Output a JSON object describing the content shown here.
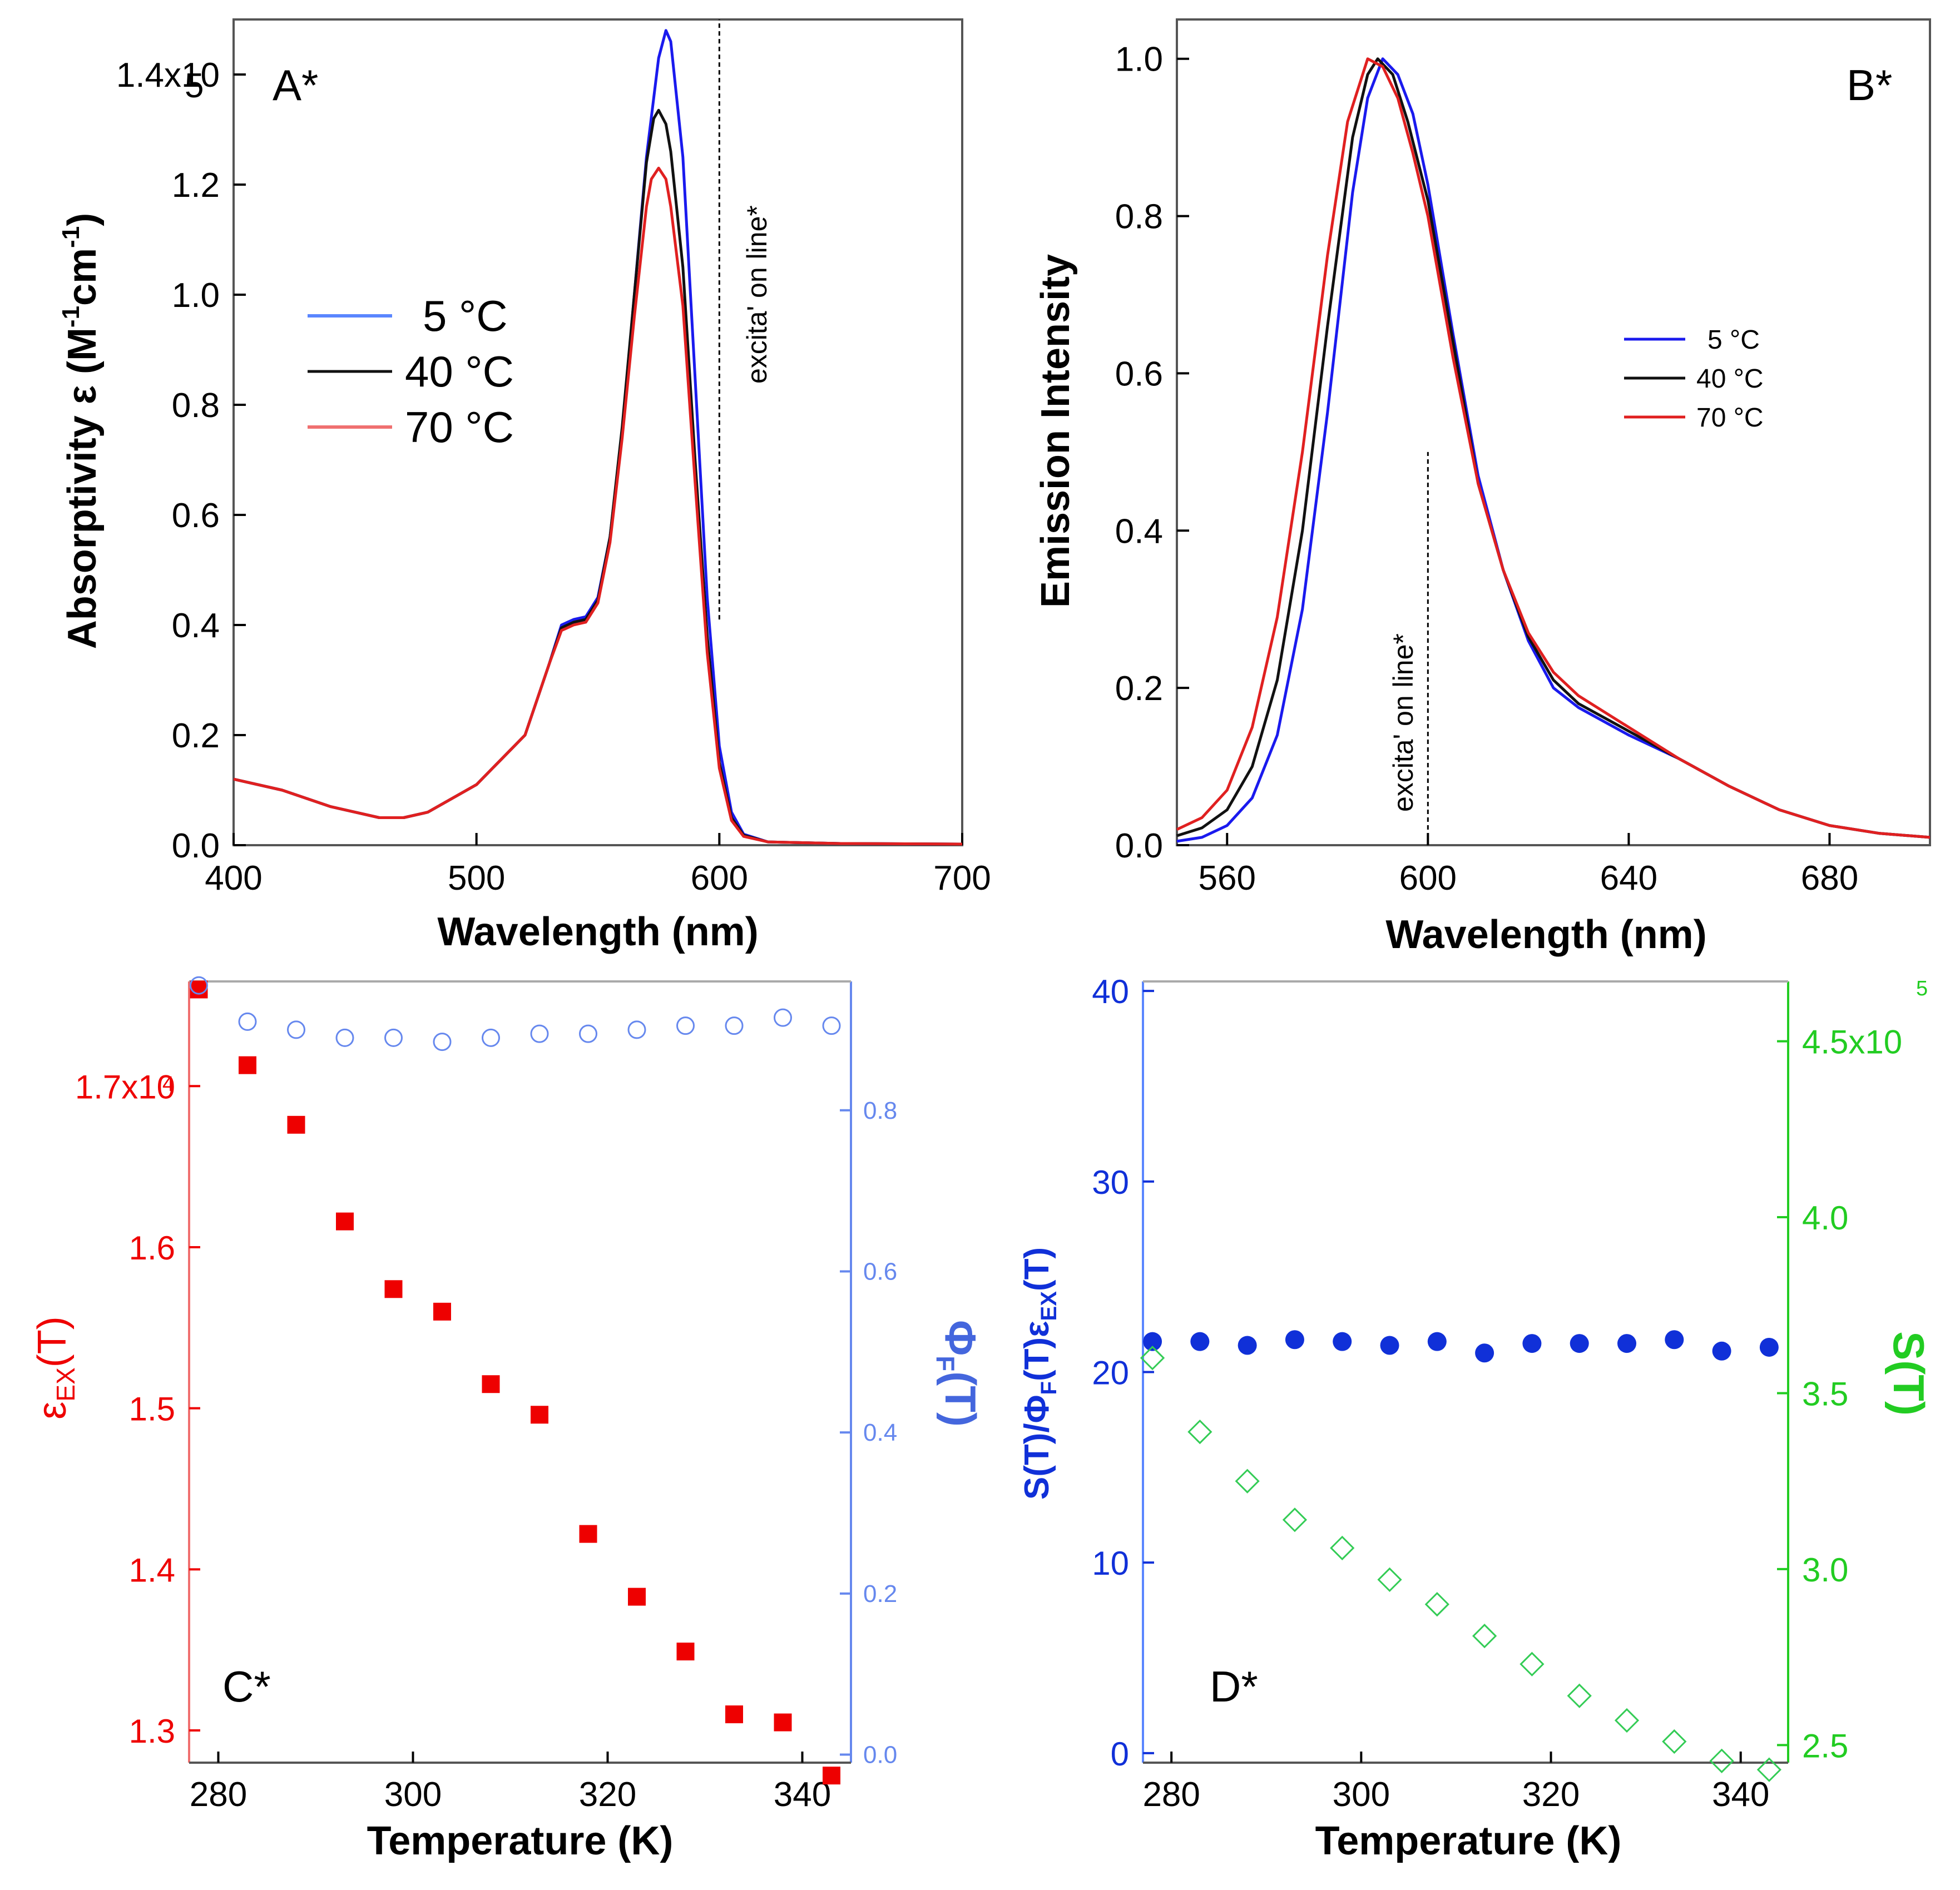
{
  "colors": {
    "blue": "#1a1aee",
    "black": "#111111",
    "red": "#e02020",
    "lightred": "#f07070",
    "lightblue": "#5a86ff",
    "marker_red": "#ee0000",
    "marker_blue": "#6688ee",
    "dot_blue": "#1030d8",
    "green": "#22cc22",
    "diamond_green": "#33cc55"
  },
  "chart_data": [
    {
      "panel": "A",
      "type": "line",
      "label": "A*",
      "xlabel": "Wavelength (nm)",
      "ylabel": "Absorptivity ε (M",
      "ylabel_sup1": "-1",
      "ylabel_mid": "cm",
      "ylabel_sup2": "-1",
      "ylabel_end": ")",
      "xlim": [
        400,
        700
      ],
      "ylim": [
        0,
        150000
      ],
      "xticks": [
        400,
        500,
        600,
        700
      ],
      "xtick_labels": [
        "400",
        "500",
        "600",
        "700"
      ],
      "yticks": [
        0,
        20000,
        40000,
        60000,
        80000,
        100000,
        120000,
        140000
      ],
      "ytick_labels": [
        "0.0",
        "0.2",
        "0.4",
        "0.6",
        "0.8",
        "1.0",
        "1.2",
        "1.4x10"
      ],
      "ytick_top_exp": "5",
      "vline": {
        "x": 600,
        "y_from": 41000,
        "y_to": 150000,
        "label": "excita' on line*"
      },
      "legend": [
        {
          "label": "5 °C",
          "color": "lightblue"
        },
        {
          "label": "40 °C",
          "color": "black"
        },
        {
          "label": "70 °C",
          "color": "lightred"
        }
      ],
      "series": [
        {
          "name": "5 °C",
          "color": "blue",
          "x": [
            400,
            420,
            440,
            460,
            470,
            480,
            500,
            520,
            530,
            535,
            540,
            545,
            550,
            555,
            560,
            565,
            570,
            575,
            578,
            580,
            585,
            590,
            595,
            600,
            605,
            610,
            620,
            650,
            700
          ],
          "y": [
            12000,
            10000,
            7000,
            5000,
            5000,
            6000,
            11000,
            20000,
            33000,
            40000,
            41000,
            41500,
            45000,
            56000,
            75000,
            100000,
            125000,
            143000,
            148000,
            146000,
            125000,
            85000,
            45000,
            18000,
            6000,
            2000,
            600,
            300,
            200
          ]
        },
        {
          "name": "40 °C",
          "color": "black",
          "x": [
            400,
            420,
            440,
            460,
            470,
            480,
            500,
            520,
            530,
            535,
            540,
            545,
            550,
            555,
            560,
            565,
            570,
            573,
            575,
            578,
            580,
            585,
            590,
            595,
            600,
            605,
            610,
            620,
            650,
            700
          ],
          "y": [
            12000,
            10000,
            7000,
            5000,
            5000,
            6000,
            11000,
            20000,
            33000,
            39500,
            40500,
            41000,
            44500,
            56000,
            76000,
            100000,
            124000,
            132000,
            133500,
            131000,
            126000,
            105000,
            70000,
            38000,
            15000,
            5000,
            1800,
            600,
            300,
            200
          ]
        },
        {
          "name": "70 °C",
          "color": "red",
          "x": [
            400,
            420,
            440,
            460,
            470,
            480,
            500,
            520,
            530,
            535,
            540,
            545,
            550,
            555,
            560,
            565,
            570,
            572,
            575,
            578,
            580,
            585,
            590,
            595,
            600,
            605,
            610,
            620,
            650,
            700
          ],
          "y": [
            12000,
            10000,
            7000,
            5000,
            5000,
            6000,
            11000,
            20000,
            33000,
            39000,
            40000,
            40500,
            44000,
            55000,
            74000,
            96000,
            116000,
            121000,
            123000,
            121000,
            116000,
            98000,
            66000,
            35000,
            14000,
            4500,
            1600,
            600,
            300,
            200
          ]
        }
      ]
    },
    {
      "panel": "B",
      "type": "line",
      "label": "B*",
      "xlabel": "Wavelength (nm)",
      "ylabel": "Emission Intensity",
      "xlim": [
        550,
        700
      ],
      "ylim": [
        0,
        1.05
      ],
      "xticks": [
        560,
        600,
        640,
        680
      ],
      "xtick_labels": [
        "560",
        "600",
        "640",
        "680"
      ],
      "yticks": [
        0,
        0.2,
        0.4,
        0.6,
        0.8,
        1.0
      ],
      "ytick_labels": [
        "0.0",
        "0.2",
        "0.4",
        "0.6",
        "0.8",
        "1.0"
      ],
      "vline": {
        "x": 600,
        "y_from": 0,
        "y_to": 0.5,
        "label": "excita' on line*"
      },
      "legend": [
        {
          "label": "5 °C",
          "color": "blue"
        },
        {
          "label": "40 °C",
          "color": "black"
        },
        {
          "label": "70 °C",
          "color": "red"
        }
      ],
      "series": [
        {
          "name": "5 °C",
          "color": "blue",
          "x": [
            550,
            555,
            560,
            565,
            570,
            575,
            580,
            585,
            588,
            591,
            594,
            597,
            600,
            605,
            610,
            615,
            620,
            625,
            630,
            640,
            650,
            660,
            670,
            680,
            690,
            700
          ],
          "y": [
            0.005,
            0.01,
            0.025,
            0.06,
            0.14,
            0.3,
            0.55,
            0.83,
            0.95,
            1.0,
            0.98,
            0.93,
            0.84,
            0.65,
            0.47,
            0.35,
            0.26,
            0.2,
            0.175,
            0.14,
            0.11,
            0.075,
            0.045,
            0.025,
            0.015,
            0.01
          ]
        },
        {
          "name": "40 °C",
          "color": "black",
          "x": [
            550,
            555,
            560,
            565,
            570,
            575,
            580,
            585,
            588,
            590,
            593,
            596,
            600,
            605,
            610,
            615,
            620,
            625,
            630,
            640,
            650,
            660,
            670,
            680,
            690,
            700
          ],
          "y": [
            0.012,
            0.022,
            0.045,
            0.1,
            0.21,
            0.4,
            0.66,
            0.9,
            0.98,
            1.0,
            0.98,
            0.92,
            0.82,
            0.64,
            0.46,
            0.35,
            0.265,
            0.21,
            0.18,
            0.145,
            0.11,
            0.075,
            0.045,
            0.025,
            0.015,
            0.01
          ]
        },
        {
          "name": "70 °C",
          "color": "red",
          "x": [
            550,
            555,
            560,
            565,
            570,
            575,
            580,
            584,
            588,
            591,
            594,
            597,
            600,
            605,
            610,
            615,
            620,
            625,
            630,
            640,
            650,
            660,
            670,
            680,
            690,
            700
          ],
          "y": [
            0.02,
            0.035,
            0.07,
            0.15,
            0.29,
            0.5,
            0.75,
            0.92,
            1.0,
            0.99,
            0.95,
            0.88,
            0.8,
            0.62,
            0.46,
            0.35,
            0.27,
            0.22,
            0.19,
            0.15,
            0.11,
            0.075,
            0.045,
            0.025,
            0.015,
            0.01
          ]
        }
      ]
    },
    {
      "panel": "C",
      "type": "scatter",
      "label": "C*",
      "xlabel": "Temperature (K)",
      "ylabel_left": "ε",
      "ylabel_left_sub": "EX",
      "ylabel_left_end": "(T)",
      "ylabel_right": "Φ",
      "ylabel_right_sub": "F",
      "ylabel_right_end": "(T)",
      "xlim": [
        277,
        345
      ],
      "ylim_left": [
        12800,
        17650
      ],
      "ylim_right": [
        -0.01,
        0.96
      ],
      "xticks": [
        280,
        300,
        320,
        340
      ],
      "xtick_labels": [
        "280",
        "300",
        "320",
        "340"
      ],
      "yticks_left": [
        13000,
        14000,
        15000,
        16000,
        17000
      ],
      "ytick_left_labels": [
        "1.3",
        "1.4",
        "1.5",
        "1.6",
        "1.7x10"
      ],
      "ytick_left_top_exp": "4",
      "yticks_right": [
        0,
        0.2,
        0.4,
        0.6,
        0.8
      ],
      "ytick_right_labels": [
        "0.0",
        "0.2",
        "0.4",
        "0.6",
        "0.8"
      ],
      "series": [
        {
          "name": "ε_EX(T)",
          "axis": "left",
          "marker": "square",
          "color": "marker_red",
          "x": [
            278,
            283,
            288,
            293,
            298,
            303,
            308,
            313,
            318,
            323,
            328,
            333,
            338,
            343
          ],
          "y": [
            17600,
            17130,
            16760,
            16160,
            15740,
            15600,
            15150,
            14960,
            14220,
            13830,
            13490,
            13100,
            13050,
            12720
          ]
        },
        {
          "name": "Φ_F(T)",
          "axis": "right",
          "marker": "open-circle",
          "color": "marker_blue",
          "x": [
            278,
            283,
            288,
            293,
            298,
            303,
            308,
            313,
            318,
            323,
            328,
            333,
            338,
            343
          ],
          "y": [
            0.955,
            0.91,
            0.9,
            0.89,
            0.89,
            0.885,
            0.89,
            0.895,
            0.895,
            0.9,
            0.905,
            0.905,
            0.915,
            0.905
          ]
        }
      ]
    },
    {
      "panel": "D",
      "type": "scatter",
      "label": "D*",
      "xlabel": "Temperature (K)",
      "ylabel_left": "S(T)/Φ",
      "ylabel_left_sub1": "F",
      "ylabel_left_mid": "(T)ε",
      "ylabel_left_sub2": "EX",
      "ylabel_left_end": "(T)",
      "ylabel_right": "S(T)",
      "xlim": [
        277,
        345
      ],
      "ylim_left": [
        -0.5,
        40.5
      ],
      "ylim_right": [
        245000,
        467000
      ],
      "xticks": [
        280,
        300,
        320,
        340
      ],
      "xtick_labels": [
        "280",
        "300",
        "320",
        "340"
      ],
      "yticks_left": [
        0,
        10,
        20,
        30,
        40
      ],
      "ytick_left_labels": [
        "0",
        "10",
        "20",
        "30",
        "40"
      ],
      "yticks_right": [
        250000,
        300000,
        350000,
        400000,
        450000
      ],
      "ytick_right_labels": [
        "2.5",
        "3.0",
        "3.5",
        "4.0",
        "4.5x10"
      ],
      "ytick_right_top_exp": "5",
      "series": [
        {
          "name": "S(T)/Φ_F(T)ε_EX(T)",
          "axis": "left",
          "marker": "filled-circle",
          "color": "dot_blue",
          "x": [
            278,
            283,
            288,
            293,
            298,
            303,
            308,
            313,
            318,
            323,
            328,
            333,
            338,
            343
          ],
          "y": [
            21.6,
            21.6,
            21.4,
            21.7,
            21.6,
            21.4,
            21.6,
            21.0,
            21.5,
            21.5,
            21.5,
            21.7,
            21.1,
            21.3
          ]
        },
        {
          "name": "S(T)",
          "axis": "right",
          "marker": "open-diamond",
          "color": "diamond_green",
          "x": [
            278,
            283,
            288,
            293,
            298,
            303,
            308,
            313,
            318,
            323,
            328,
            333,
            338,
            343
          ],
          "y": [
            360000,
            339000,
            325000,
            314000,
            306000,
            297000,
            290000,
            281000,
            273000,
            264000,
            257000,
            251000,
            245500,
            243000
          ]
        }
      ]
    }
  ]
}
